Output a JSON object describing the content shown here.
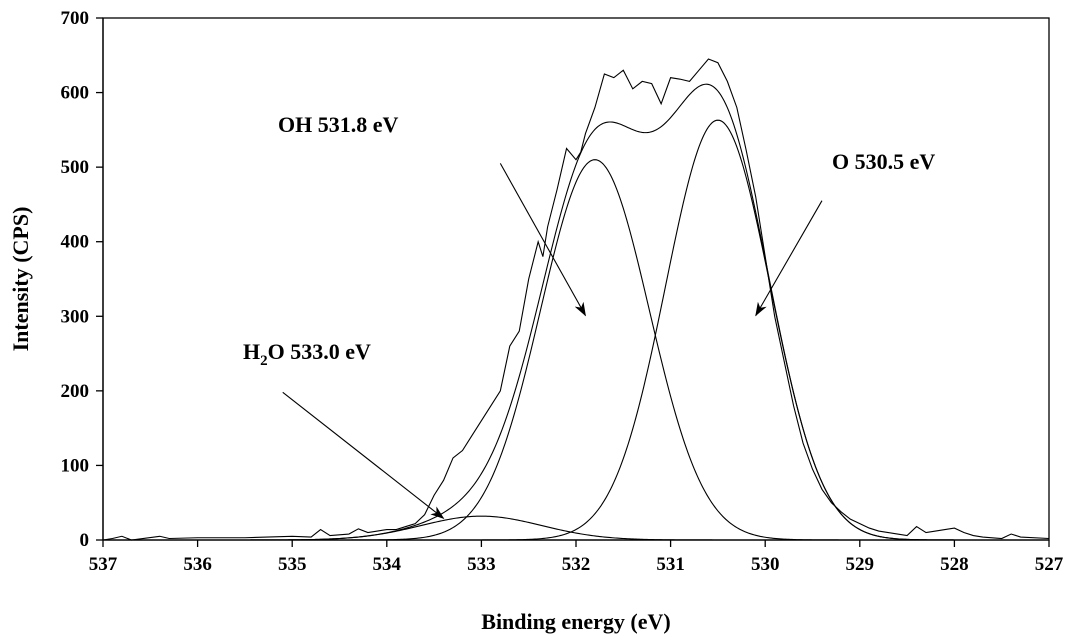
{
  "chart_data": {
    "type": "line",
    "xlabel": "Binding energy (eV)",
    "ylabel": "Intensity (CPS)",
    "xlim": [
      537,
      527
    ],
    "ylim": [
      0,
      700
    ],
    "x_reversed": true,
    "xticks": [
      537,
      536,
      535,
      534,
      533,
      532,
      531,
      530,
      529,
      528,
      527
    ],
    "yticks": [
      0,
      100,
      200,
      300,
      400,
      500,
      600,
      700
    ],
    "grid": false,
    "legend": "none",
    "series": [
      {
        "role": "measured",
        "x": [
          537,
          536.9,
          536.8,
          536.7,
          536.4,
          536.3,
          536,
          535.5,
          535,
          534.8,
          534.7,
          534.6,
          534.4,
          534.3,
          534.2,
          534.1,
          534,
          533.9,
          533.8,
          533.7,
          533.6,
          533.5,
          533.4,
          533.3,
          533.2,
          533.1,
          533,
          532.9,
          532.8,
          532.7,
          532.6,
          532.5,
          532.4,
          532.35,
          532.3,
          532.2,
          532.1,
          532,
          531.95,
          531.9,
          531.8,
          531.7,
          531.6,
          531.5,
          531.4,
          531.3,
          531.2,
          531.1,
          531,
          530.9,
          530.8,
          530.7,
          530.6,
          530.5,
          530.4,
          530.3,
          530.2,
          530.1,
          530,
          529.9,
          529.8,
          529.7,
          529.6,
          529.5,
          529.4,
          529.3,
          529.2,
          529.1,
          529,
          528.9,
          528.8,
          528.7,
          528.6,
          528.5,
          528.4,
          528.3,
          528.2,
          528.1,
          528,
          527.9,
          527.8,
          527.7,
          527.5,
          527.4,
          527.3,
          527
        ],
        "y": [
          0,
          2,
          5,
          0,
          5,
          2,
          3,
          3,
          5,
          4,
          14,
          6,
          8,
          15,
          10,
          12,
          14,
          14,
          18,
          22,
          34,
          60,
          80,
          110,
          120,
          140,
          160,
          180,
          200,
          260,
          280,
          350,
          400,
          380,
          420,
          470,
          525,
          510,
          520,
          545,
          580,
          625,
          620,
          630,
          605,
          615,
          612,
          585,
          620,
          618,
          615,
          630,
          645,
          640,
          615,
          580,
          522,
          460,
          380,
          300,
          240,
          180,
          130,
          95,
          68,
          50,
          38,
          28,
          22,
          16,
          12,
          10,
          8,
          6,
          18,
          10,
          12,
          14,
          16,
          10,
          6,
          4,
          2,
          8,
          4,
          2
        ]
      },
      {
        "role": "envelope",
        "type": "fit",
        "components": "sum"
      },
      {
        "role": "component",
        "label": "OH 531.8 eV",
        "center": 531.8,
        "height": 510,
        "fwhm": 1.35
      },
      {
        "role": "component",
        "label": "O 530.5 eV",
        "center": 530.5,
        "height": 563,
        "fwhm": 1.3
      },
      {
        "role": "component",
        "label": "H2O 533.0 eV",
        "center": 533.0,
        "height": 32,
        "fwhm": 1.5
      }
    ],
    "annotations": [
      {
        "text": "OH 531.8 eV",
        "arrow_from": [
          532.8,
          505
        ],
        "arrow_to": [
          531.9,
          301
        ]
      },
      {
        "text": "O 530.5 eV",
        "arrow_from": [
          529.4,
          455
        ],
        "arrow_to": [
          530.1,
          301
        ]
      },
      {
        "text_main": "H",
        "text_sub": "2",
        "text_rest": "O 533.0 eV",
        "arrow_from": [
          535.1,
          198
        ],
        "arrow_to": [
          533.4,
          29
        ]
      }
    ]
  }
}
